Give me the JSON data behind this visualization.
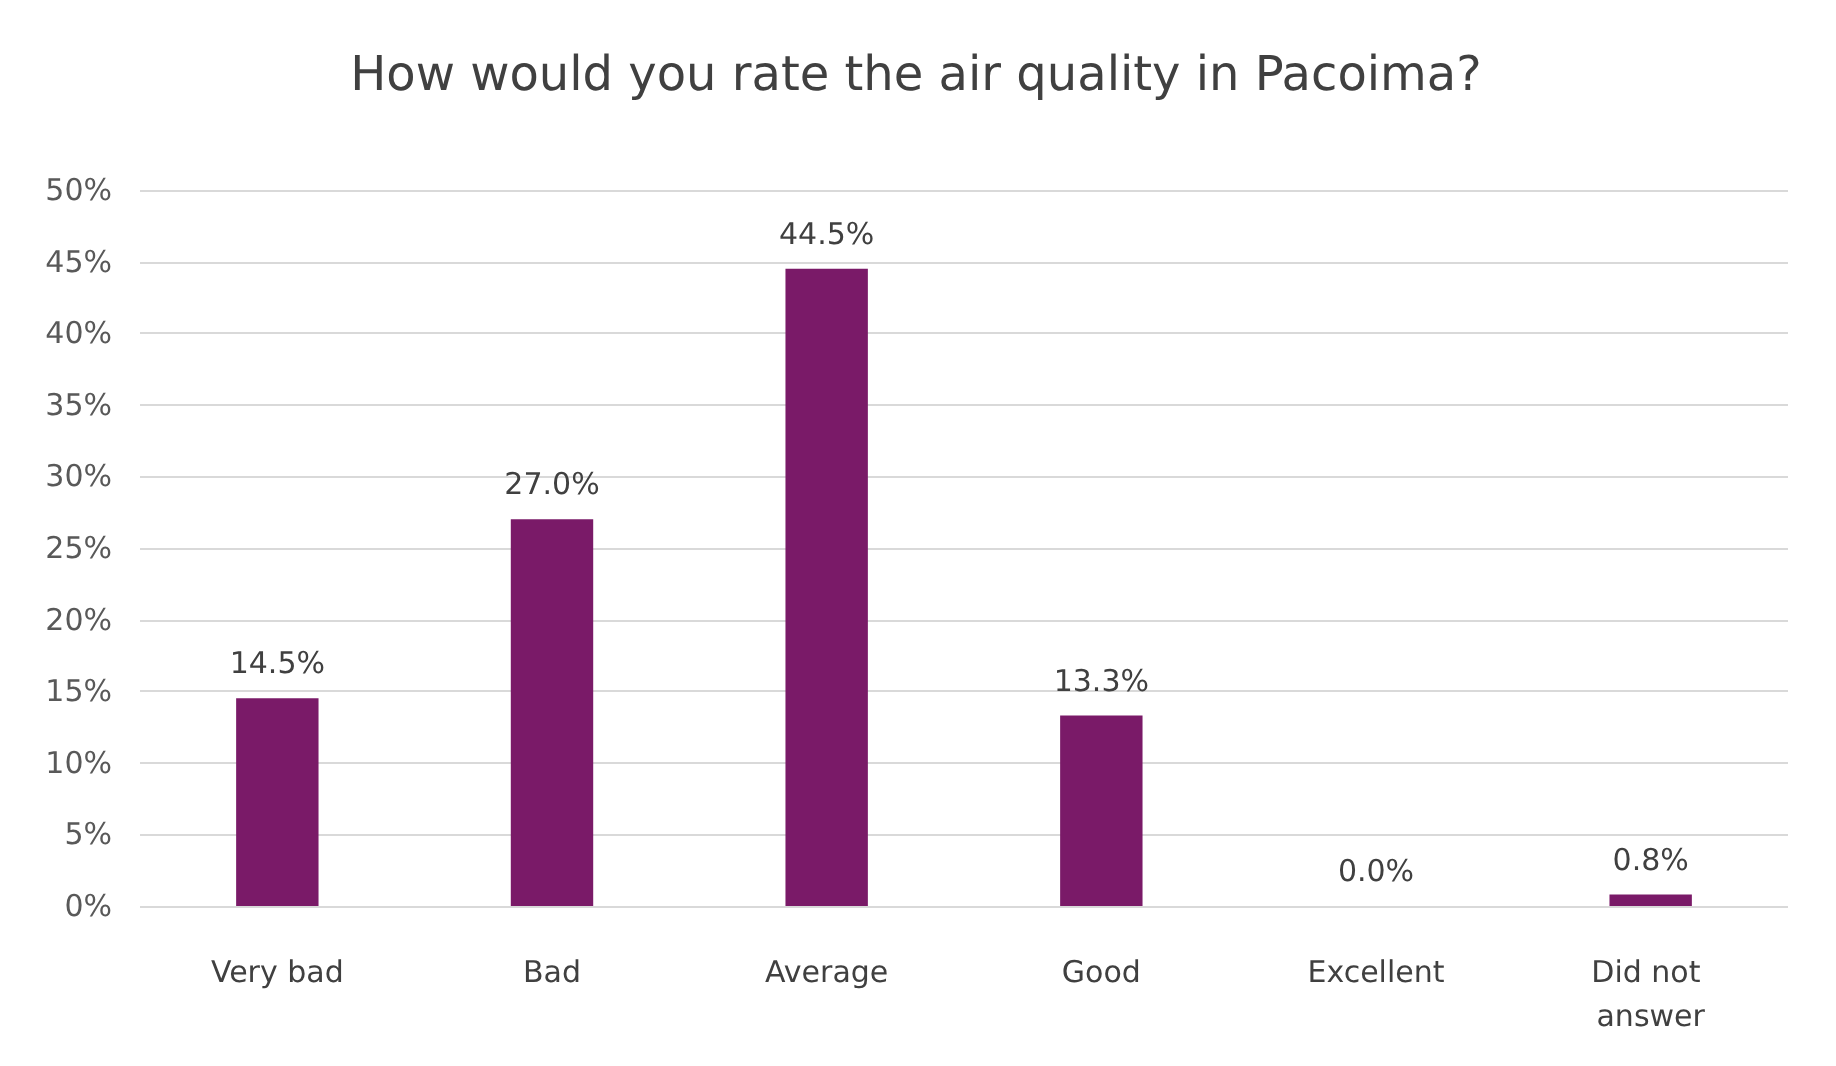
{
  "chart_data": {
    "type": "bar",
    "title": "How would you rate the air quality in Pacoima?",
    "categories": [
      "Very bad",
      "Bad",
      "Average",
      "Good",
      "Excellent",
      "Did not answer"
    ],
    "values": [
      14.5,
      27.0,
      44.5,
      13.3,
      0.0,
      0.8
    ],
    "value_labels": [
      "14.5%",
      "27.0%",
      "44.5%",
      "13.3%",
      "0.0%",
      "0.8%"
    ],
    "color": "#7a1a68",
    "ylim": [
      0,
      50
    ],
    "yticks": [
      {
        "value": 0,
        "label": "0%"
      },
      {
        "value": 5,
        "label": "5%"
      },
      {
        "value": 10,
        "label": "10%"
      },
      {
        "value": 15,
        "label": "15%"
      },
      {
        "value": 20,
        "label": "20%"
      },
      {
        "value": 25,
        "label": "25%"
      },
      {
        "value": 30,
        "label": "30%"
      },
      {
        "value": 35,
        "label": "35%"
      },
      {
        "value": 40,
        "label": "40%"
      },
      {
        "value": 45,
        "label": "45%"
      },
      {
        "value": 50,
        "label": "50%"
      }
    ],
    "grid": true
  }
}
